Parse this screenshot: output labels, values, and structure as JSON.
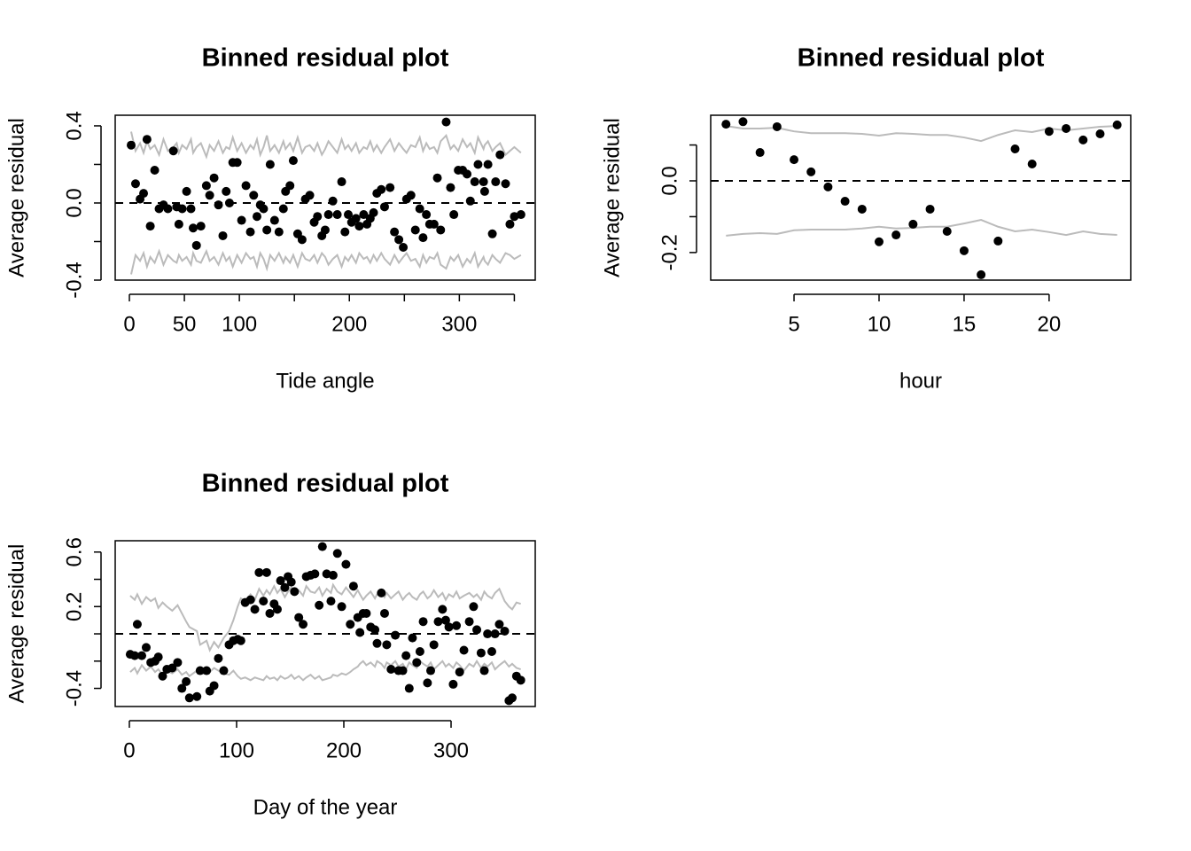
{
  "chart_data": [
    {
      "type": "scatter",
      "title": "Binned residual plot",
      "xlabel": "Tide angle",
      "ylabel": "Average residual",
      "xlim": [
        -12.9,
        369
      ],
      "ylim": [
        -0.4,
        0.455
      ],
      "xticks": [
        0,
        50,
        100,
        {
          "value": 150,
          "label": null
        },
        200,
        {
          "value": 250,
          "label": null
        },
        300,
        {
          "value": 350,
          "label": null
        }
      ],
      "yticks": [
        -0.4,
        {
          "value": -0.2,
          "label": null
        },
        {
          "value": 0,
          "label": "0.0"
        },
        {
          "value": 0.2,
          "label": null
        },
        0.4
      ],
      "reference_line": 0,
      "point_color": "#000000",
      "bound_color": "#bbbbbb",
      "x": [
        1.6,
        5.6,
        9.7,
        12.9,
        16,
        19,
        23,
        27,
        31,
        35,
        40,
        43,
        45,
        48,
        52,
        56,
        58,
        61,
        65,
        70,
        73,
        77,
        81,
        85,
        88,
        91,
        94,
        98,
        102,
        106,
        110,
        113,
        116,
        119,
        122,
        125,
        128,
        132,
        136,
        140,
        142,
        146,
        149,
        153,
        157,
        160,
        164,
        168,
        171,
        175,
        178,
        181,
        185,
        189,
        193,
        196,
        199,
        202,
        206,
        209,
        213,
        216,
        219,
        222,
        225,
        229,
        232,
        237,
        241,
        245,
        249,
        252,
        256,
        260,
        264,
        267,
        270,
        273,
        277,
        280,
        283,
        288,
        292,
        295,
        299,
        303,
        307,
        310,
        314,
        317,
        322,
        323,
        326,
        330,
        333,
        337,
        342,
        346,
        350,
        356
      ],
      "values": [
        0.3,
        0.1,
        0.02,
        0.05,
        0.33,
        -0.12,
        0.17,
        -0.03,
        -0.01,
        -0.03,
        0.27,
        -0.02,
        -0.11,
        -0.03,
        0.06,
        -0.03,
        -0.13,
        -0.22,
        -0.12,
        0.09,
        0.04,
        0.13,
        -0.01,
        -0.17,
        0.06,
        0.0,
        0.21,
        0.21,
        -0.09,
        0.09,
        -0.15,
        0.04,
        -0.07,
        -0.01,
        -0.03,
        -0.14,
        0.2,
        -0.09,
        -0.15,
        -0.03,
        0.06,
        0.09,
        0.22,
        -0.16,
        -0.19,
        0.02,
        0.04,
        -0.1,
        -0.07,
        -0.17,
        -0.14,
        -0.06,
        0.01,
        -0.06,
        0.11,
        -0.15,
        -0.06,
        -0.1,
        -0.08,
        -0.12,
        -0.06,
        -0.11,
        -0.08,
        -0.05,
        0.05,
        0.07,
        -0.02,
        0.08,
        -0.15,
        -0.19,
        -0.23,
        0.02,
        0.04,
        -0.14,
        -0.03,
        -0.18,
        -0.06,
        -0.11,
        -0.11,
        0.13,
        -0.14,
        0.42,
        0.08,
        -0.06,
        0.17,
        0.17,
        0.15,
        0.01,
        0.11,
        0.2,
        0.11,
        0.06,
        0.2,
        -0.16,
        0.11,
        0.25,
        0.1,
        -0.11,
        -0.07,
        -0.06
      ],
      "upper": [
        0.37,
        0.27,
        0.31,
        0.26,
        0.32,
        0.28,
        0.3,
        0.25,
        0.33,
        0.27,
        0.29,
        0.31,
        0.26,
        0.3,
        0.28,
        0.33,
        0.26,
        0.29,
        0.31,
        0.24,
        0.3,
        0.27,
        0.32,
        0.26,
        0.29,
        0.28,
        0.34,
        0.27,
        0.31,
        0.26,
        0.3,
        0.28,
        0.33,
        0.25,
        0.29,
        0.35,
        0.27,
        0.3,
        0.26,
        0.32,
        0.28,
        0.31,
        0.27,
        0.34,
        0.26,
        0.29,
        0.3,
        0.27,
        0.31,
        0.25,
        0.28,
        0.32,
        0.29,
        0.26,
        0.33,
        0.28,
        0.3,
        0.27,
        0.31,
        0.26,
        0.29,
        0.28,
        0.32,
        0.27,
        0.3,
        0.26,
        0.29,
        0.33,
        0.27,
        0.31,
        0.28,
        0.26,
        0.3,
        0.29,
        0.34,
        0.27,
        0.31,
        0.28,
        0.29,
        0.26,
        0.32,
        0.35,
        0.28,
        0.3,
        0.27,
        0.33,
        0.29,
        0.31,
        0.26,
        0.34,
        0.28,
        0.3,
        0.32,
        0.27,
        0.29,
        0.31,
        0.25,
        0.27,
        0.29,
        0.26
      ],
      "lower": [
        -0.37,
        -0.27,
        -0.3,
        -0.26,
        -0.33,
        -0.28,
        -0.31,
        -0.25,
        -0.32,
        -0.27,
        -0.3,
        -0.31,
        -0.27,
        -0.3,
        -0.28,
        -0.32,
        -0.26,
        -0.3,
        -0.31,
        -0.25,
        -0.3,
        -0.28,
        -0.32,
        -0.26,
        -0.3,
        -0.28,
        -0.33,
        -0.27,
        -0.31,
        -0.26,
        -0.29,
        -0.28,
        -0.33,
        -0.26,
        -0.29,
        -0.34,
        -0.27,
        -0.3,
        -0.26,
        -0.31,
        -0.28,
        -0.31,
        -0.27,
        -0.33,
        -0.26,
        -0.29,
        -0.3,
        -0.27,
        -0.31,
        -0.26,
        -0.28,
        -0.32,
        -0.29,
        -0.27,
        -0.33,
        -0.28,
        -0.3,
        -0.27,
        -0.31,
        -0.26,
        -0.29,
        -0.28,
        -0.31,
        -0.27,
        -0.3,
        -0.26,
        -0.29,
        -0.32,
        -0.27,
        -0.31,
        -0.28,
        -0.26,
        -0.3,
        -0.29,
        -0.33,
        -0.27,
        -0.31,
        -0.28,
        -0.29,
        -0.26,
        -0.32,
        -0.34,
        -0.28,
        -0.3,
        -0.27,
        -0.33,
        -0.29,
        -0.31,
        -0.26,
        -0.33,
        -0.28,
        -0.3,
        -0.32,
        -0.27,
        -0.29,
        -0.31,
        -0.26,
        -0.27,
        -0.29,
        -0.27
      ]
    },
    {
      "type": "scatter",
      "title": "Binned residual plot",
      "xlabel": "hour",
      "ylabel": "Average residual",
      "xlim": [
        0.1,
        24.8
      ],
      "ylim": [
        -0.277,
        0.183
      ],
      "xticks": [
        5,
        10,
        15,
        20
      ],
      "yticks": [
        -0.2,
        {
          "value": -0.1,
          "label": null
        },
        {
          "value": 0,
          "label": "0.0"
        },
        {
          "value": 0.1,
          "label": null
        }
      ],
      "reference_line": 0,
      "point_color": "#000000",
      "bound_color": "#bbbbbb",
      "x": [
        1,
        2,
        3,
        4,
        5,
        6,
        7,
        8,
        9,
        10,
        11,
        12,
        13,
        14,
        15,
        16,
        17,
        18,
        19,
        20,
        21,
        22,
        23,
        24
      ],
      "values": [
        0.158,
        0.165,
        0.079,
        0.151,
        0.059,
        0.025,
        -0.017,
        -0.057,
        -0.079,
        -0.17,
        -0.151,
        -0.121,
        -0.079,
        -0.141,
        -0.195,
        -0.262,
        -0.168,
        0.089,
        0.047,
        0.138,
        0.146,
        0.114,
        0.131,
        0.156
      ],
      "upper": [
        0.153,
        0.146,
        0.146,
        0.148,
        0.138,
        0.133,
        0.133,
        0.133,
        0.131,
        0.126,
        0.133,
        0.131,
        0.128,
        0.128,
        0.121,
        0.111,
        0.128,
        0.141,
        0.136,
        0.146,
        0.141,
        0.146,
        0.151,
        0.153
      ],
      "lower": [
        -0.153,
        -0.148,
        -0.146,
        -0.148,
        -0.138,
        -0.136,
        -0.136,
        -0.136,
        -0.133,
        -0.128,
        -0.133,
        -0.131,
        -0.128,
        -0.128,
        -0.119,
        -0.109,
        -0.128,
        -0.141,
        -0.136,
        -0.143,
        -0.151,
        -0.141,
        -0.148,
        -0.151
      ]
    },
    {
      "type": "scatter",
      "title": "Binned residual plot",
      "xlabel": "Day of the year",
      "ylabel": "Average residual",
      "xlim": [
        -13.2,
        378.5
      ],
      "ylim": [
        -0.533,
        0.683
      ],
      "xticks": [
        0,
        100,
        200,
        300
      ],
      "yticks": [
        -0.4,
        {
          "value": -0.2,
          "label": null
        },
        {
          "value": 0,
          "label": null
        },
        0.2,
        {
          "value": 0.4,
          "label": null
        },
        0.6
      ],
      "reference_line": 0,
      "point_color": "#000000",
      "bound_color": "#bbbbbb",
      "x": [
        0.8,
        5,
        7.4,
        11.6,
        15.7,
        20,
        24,
        27,
        31,
        35,
        40,
        45,
        49,
        53,
        56,
        63,
        66,
        72,
        75,
        79,
        83,
        88,
        93,
        97,
        101,
        104,
        108,
        113,
        117,
        121,
        125,
        128,
        131,
        135,
        138,
        141,
        145,
        148,
        151,
        154,
        158,
        162,
        165,
        169,
        173,
        177,
        180,
        184,
        188,
        190,
        194,
        198,
        202,
        206,
        209,
        213,
        215,
        218,
        221,
        225,
        229,
        231,
        235,
        238,
        240,
        244,
        248,
        251,
        255,
        258,
        261,
        264,
        268,
        271,
        274,
        278,
        281,
        284,
        288,
        292,
        295,
        298,
        302,
        305,
        308,
        312,
        317,
        321,
        324,
        328,
        331,
        334,
        338,
        341,
        345,
        350,
        354,
        357,
        361,
        365
      ],
      "values": [
        -0.15,
        -0.16,
        0.07,
        -0.16,
        -0.1,
        -0.21,
        -0.2,
        -0.17,
        -0.31,
        -0.26,
        -0.25,
        -0.21,
        -0.4,
        -0.35,
        -0.47,
        -0.46,
        -0.27,
        -0.27,
        -0.42,
        -0.38,
        -0.18,
        -0.27,
        -0.08,
        -0.05,
        -0.04,
        -0.05,
        0.23,
        0.25,
        0.18,
        0.45,
        0.24,
        0.45,
        0.15,
        0.22,
        0.18,
        0.39,
        0.34,
        0.42,
        0.38,
        0.31,
        0.12,
        0.07,
        0.42,
        0.43,
        0.44,
        0.21,
        0.64,
        0.44,
        0.24,
        0.43,
        0.59,
        0.2,
        0.51,
        0.07,
        0.35,
        0.12,
        0.01,
        0.15,
        0.15,
        0.05,
        0.03,
        -0.07,
        0.3,
        0.15,
        -0.08,
        -0.26,
        -0.01,
        -0.27,
        -0.27,
        -0.16,
        -0.4,
        -0.03,
        -0.21,
        -0.13,
        0.09,
        -0.36,
        -0.27,
        -0.08,
        0.09,
        0.18,
        0.1,
        0.05,
        -0.37,
        0.06,
        -0.28,
        -0.12,
        0.09,
        0.2,
        0.03,
        -0.14,
        -0.27,
        0.0,
        -0.13,
        0.0,
        0.07,
        0.02,
        -0.49,
        -0.47,
        -0.31,
        -0.34
      ],
      "upper": [
        0.28,
        0.25,
        0.29,
        0.22,
        0.27,
        0.24,
        0.26,
        0.19,
        0.23,
        0.2,
        0.17,
        0.21,
        0.15,
        0.09,
        0.05,
        0.02,
        -0.08,
        -0.05,
        -0.12,
        -0.06,
        -0.1,
        -0.03,
        0.02,
        0.1,
        0.2,
        0.26,
        0.24,
        0.29,
        0.25,
        0.33,
        0.28,
        0.32,
        0.29,
        0.35,
        0.3,
        0.33,
        0.27,
        0.31,
        0.34,
        0.29,
        0.32,
        0.28,
        0.35,
        0.31,
        0.3,
        0.34,
        0.28,
        0.33,
        0.3,
        0.36,
        0.31,
        0.29,
        0.34,
        0.3,
        0.27,
        0.32,
        0.29,
        0.25,
        0.28,
        0.31,
        0.26,
        0.29,
        0.32,
        0.27,
        0.3,
        0.26,
        0.29,
        0.31,
        0.25,
        0.28,
        0.3,
        0.27,
        0.25,
        0.29,
        0.31,
        0.26,
        0.28,
        0.32,
        0.27,
        0.3,
        0.25,
        0.29,
        0.27,
        0.31,
        0.26,
        0.28,
        0.3,
        0.27,
        0.29,
        0.25,
        0.31,
        0.28,
        0.26,
        0.3,
        0.33,
        0.24,
        0.2,
        0.18,
        0.23,
        0.22
      ],
      "lower": [
        -0.28,
        -0.25,
        -0.29,
        -0.23,
        -0.27,
        -0.24,
        -0.28,
        -0.26,
        -0.3,
        -0.27,
        -0.29,
        -0.26,
        -0.3,
        -0.28,
        -0.31,
        -0.27,
        -0.29,
        -0.26,
        -0.28,
        -0.25,
        -0.27,
        -0.29,
        -0.3,
        -0.27,
        -0.31,
        -0.33,
        -0.32,
        -0.34,
        -0.32,
        -0.33,
        -0.34,
        -0.31,
        -0.33,
        -0.32,
        -0.34,
        -0.31,
        -0.33,
        -0.32,
        -0.3,
        -0.33,
        -0.31,
        -0.34,
        -0.32,
        -0.3,
        -0.33,
        -0.31,
        -0.34,
        -0.33,
        -0.32,
        -0.3,
        -0.31,
        -0.29,
        -0.3,
        -0.28,
        -0.26,
        -0.24,
        -0.22,
        -0.2,
        -0.23,
        -0.21,
        -0.24,
        -0.2,
        -0.22,
        -0.25,
        -0.21,
        -0.23,
        -0.2,
        -0.24,
        -0.22,
        -0.26,
        -0.21,
        -0.23,
        -0.25,
        -0.2,
        -0.22,
        -0.24,
        -0.21,
        -0.26,
        -0.23,
        -0.2,
        -0.24,
        -0.22,
        -0.25,
        -0.21,
        -0.23,
        -0.27,
        -0.22,
        -0.24,
        -0.2,
        -0.25,
        -0.22,
        -0.24,
        -0.21,
        -0.26,
        -0.23,
        -0.2,
        -0.24,
        -0.22,
        -0.25,
        -0.26
      ]
    }
  ]
}
